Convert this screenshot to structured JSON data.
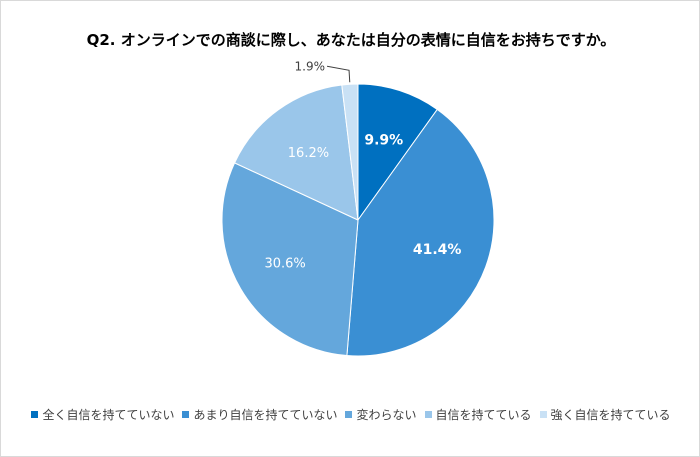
{
  "chart_data": {
    "type": "pie",
    "title": "Q2. オンラインでの商談に際し、あなたは自分の表情に自信をお持ちですか。",
    "categories": [
      "全く自信を持てていない",
      "あまり自信を持てていない",
      "変わらない",
      "自信を持てている",
      "強く自信を持てている"
    ],
    "values": [
      9.9,
      41.4,
      30.6,
      16.2,
      1.9
    ],
    "data_labels": [
      "9.9%",
      "41.4%",
      "30.6%",
      "16.2%",
      "1.9%"
    ],
    "colors": [
      "#0070c0",
      "#3a8fd3",
      "#64a7dc",
      "#9ac6ea",
      "#c9e1f5"
    ],
    "label_colors": [
      "#ffffff",
      "#ffffff",
      "#ffffff",
      "#ffffff",
      "#404040"
    ],
    "label_bold": [
      true,
      true,
      false,
      false,
      false
    ],
    "legend_position": "bottom"
  }
}
